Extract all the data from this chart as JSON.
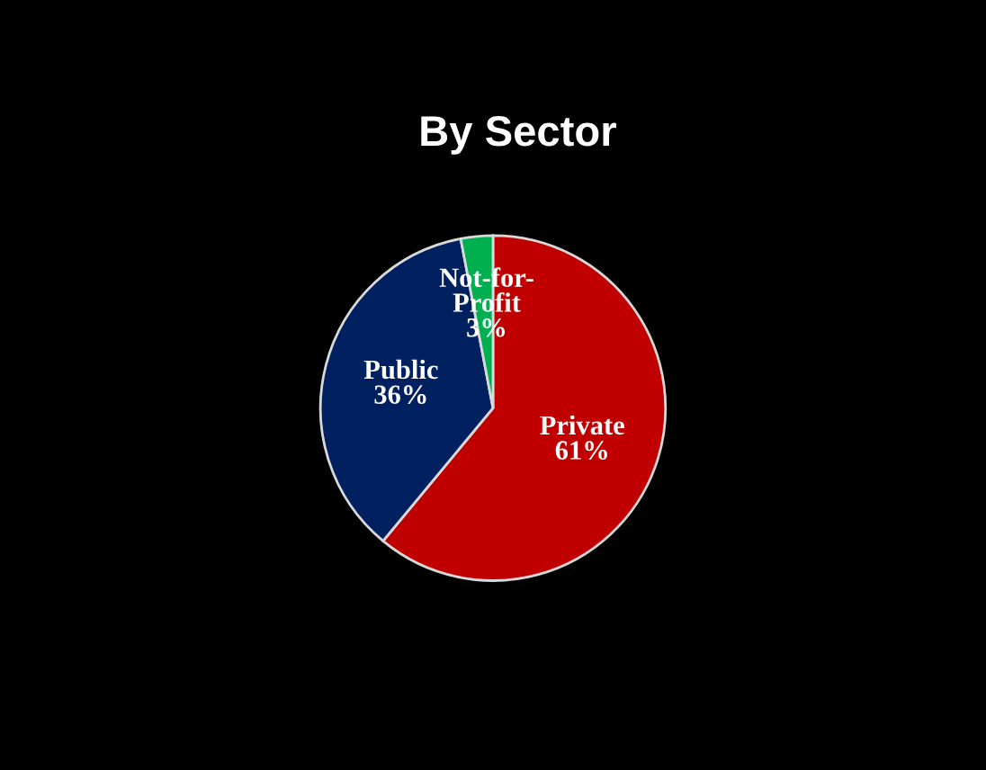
{
  "chart_data": {
    "type": "pie",
    "title": "By Sector",
    "categories": [
      "Private",
      "Public",
      "Not-for-Profit"
    ],
    "values": [
      61,
      36,
      3
    ],
    "colors": [
      "#c00000",
      "#002060",
      "#00b050"
    ],
    "value_labels": [
      "61%",
      "36%",
      "3%"
    ],
    "legend": false
  }
}
